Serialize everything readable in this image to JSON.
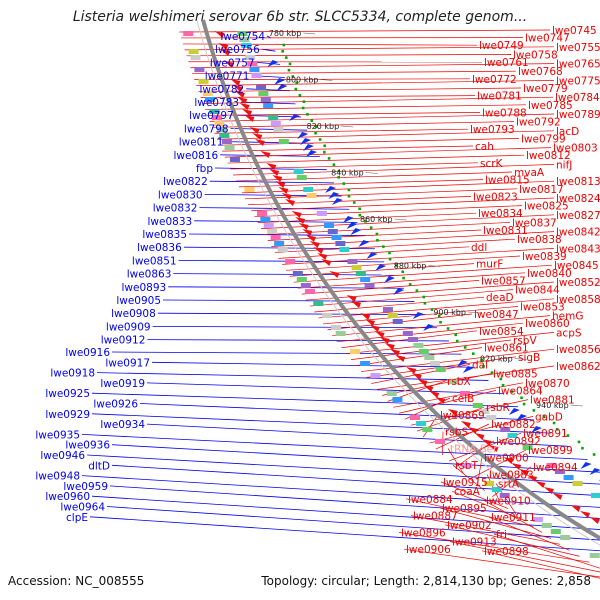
{
  "title": "Listeria welshimeri serovar 6b str. SLCC5334, complete genom...",
  "footer": {
    "accession": "Accession: NC_008555",
    "topology": "Topology: circular; Length: 2,814,130 bp; Genes: 2,858"
  },
  "colors": {
    "left_labels": "#0000ee",
    "right_labels": "#ee0000",
    "trna_label": "#ff9999",
    "backbone": "#888888",
    "gc_dots": "#00aa00"
  },
  "ticks": [
    "780 kbp",
    "800 kbp",
    "820 kbp",
    "840 kbp",
    "860 kbp",
    "880 kbp",
    "900 kbp",
    "920 kbp",
    "940 kbp",
    "960 kbp",
    "980 kbp",
    "1000 kbp"
  ],
  "left_labels": [
    "lwe0754",
    "lwe0756",
    "lwe0757",
    "lwe0771",
    "lwe0782",
    "lwe0783",
    "lwe0797",
    "lwe0798",
    "lwe0811",
    "lwe0816",
    "fbp",
    "lwe0822",
    "lwe0830",
    "lwe0832",
    "lwe0833",
    "lwe0835",
    "lwe0836",
    "lwe0851",
    "lwe0863",
    "lwe0893",
    "lwe0905",
    "lwe0908",
    "lwe0909",
    "lwe0912",
    "lwe0916",
    "lwe0917",
    "lwe0918",
    "lwe0919",
    "lwe0925",
    "lwe0926",
    "lwe0929",
    "lwe0934",
    "lwe0935",
    "lwe0936",
    "lwe0946",
    "dltD",
    "lwe0948",
    "lwe0959",
    "lwe0960",
    "lwe0964",
    "clpE"
  ],
  "right_labels": [
    "lwe0745",
    "lwe0747",
    "lwe0749",
    "lwe0755",
    "lwe0758",
    "lwe0761",
    "lwe0765",
    "lwe0768",
    "lwe0772",
    "lwe0775",
    "lwe0779",
    "lwe0781",
    "lwe0784",
    "lwe0785",
    "lwe0788",
    "lwe0789",
    "lwe0792",
    "lwe0793",
    "lacD",
    "lwe0799",
    "cah",
    "lwe0803",
    "lwe0812",
    "scrK",
    "nifJ",
    "mvaA",
    "lwe0815",
    "lwe0813",
    "lwe0817",
    "lwe0823",
    "lwe0824",
    "lwe0825",
    "lwe0834",
    "lwe0827",
    "lwe0837",
    "lwe0831",
    "lwe0842",
    "lwe0838",
    "ddl",
    "lwe0843",
    "lwe0839",
    "murF",
    "lwe0845",
    "lwe0840",
    "lwe0857",
    "lwe0852",
    "lwe0844",
    "deaD",
    "lwe0858",
    "lwe0853",
    "lwe0847",
    "hemG",
    "lwe0860",
    "lwe0854",
    "acpS",
    "rsbV",
    "lwe0861",
    "lwe0856",
    "sigB",
    "dal",
    "lwe0862",
    "lwe0885",
    "rsbX",
    "lwe0870",
    "lwe0864",
    "celB",
    "lwe0881",
    "rsbR",
    "lwe0869",
    "gabD",
    "lwe0882",
    "rsbS",
    "lwe0891",
    "lwe0892",
    "tRNA-Ser",
    "lwe0899",
    "lwe0900",
    "rsbT",
    "lwe0894",
    "lwe0883",
    "lwe0915",
    "srtA",
    "coaA",
    "lwe0884",
    "lwe0910",
    "lwe0895",
    "lwe0887",
    "lwe0911",
    "lwe0902",
    "lwe0896",
    "fri",
    "lwe0913",
    "lwe0906",
    "lwe0898"
  ]
}
